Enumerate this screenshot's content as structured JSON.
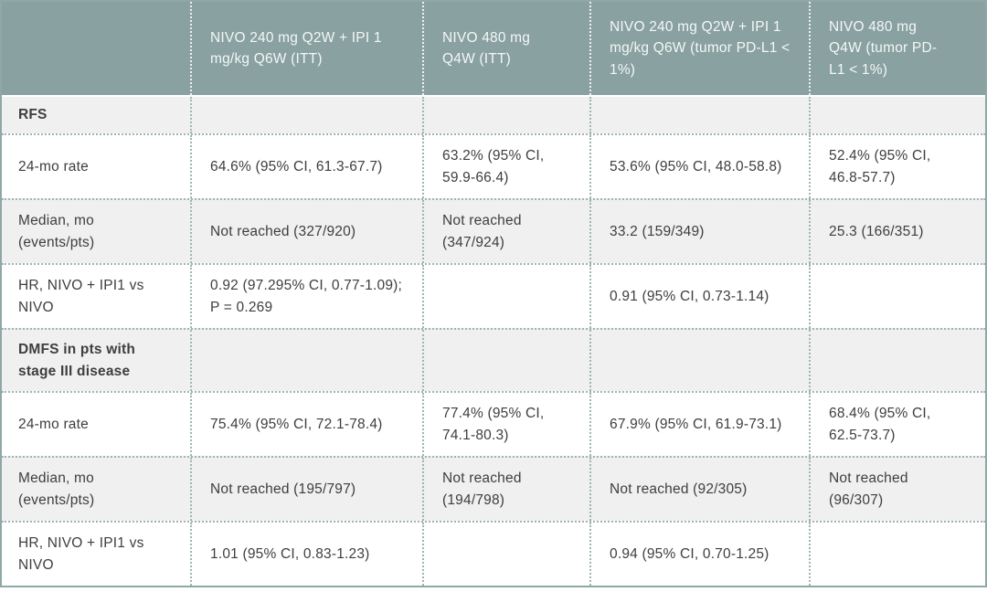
{
  "table": {
    "columns": [
      "",
      "NIVO 240 mg Q2W + IPI 1 mg/kg Q6W (ITT)",
      "NIVO 480 mg Q4W (ITT)",
      "NIVO 240 mg Q2W + IPI 1 mg/kg Q6W (tumor PD-L1 < 1%)",
      "NIVO 480 mg Q4W (tumor PD-L1 < 1%)"
    ],
    "rows": [
      {
        "type": "section",
        "label": "RFS",
        "values": [
          "",
          "",
          "",
          ""
        ]
      },
      {
        "type": "data",
        "label": "24-mo rate",
        "values": [
          "64.6% (95% CI, 61.3-67.7)",
          "63.2% (95% CI, 59.9-66.4)",
          "53.6% (95% CI, 48.0-58.8)",
          "52.4% (95% CI, 46.8-57.7)"
        ]
      },
      {
        "type": "data",
        "label": "Median, mo (events/pts)",
        "values": [
          "Not reached (327/920)",
          "Not reached (347/924)",
          "33.2 (159/349)",
          "25.3 (166/351)"
        ]
      },
      {
        "type": "data",
        "label": "HR, NIVO + IPI1 vs NIVO",
        "values": [
          "0.92 (97.295% CI, 0.77-1.09); P = 0.269",
          "",
          "0.91 (95% CI, 0.73-1.14)",
          ""
        ]
      },
      {
        "type": "section",
        "label": "DMFS in pts with stage III disease",
        "values": [
          "",
          "",
          "",
          ""
        ]
      },
      {
        "type": "data",
        "label": "24-mo rate",
        "values": [
          "75.4% (95% CI, 72.1-78.4)",
          "77.4% (95% CI, 74.1-80.3)",
          "67.9% (95% CI, 61.9-73.1)",
          "68.4% (95% CI, 62.5-73.7)"
        ]
      },
      {
        "type": "data",
        "label": "Median, mo (events/pts)",
        "values": [
          "Not reached (195/797)",
          "Not reached (194/798)",
          "Not reached (92/305)",
          "Not reached (96/307)"
        ]
      },
      {
        "type": "data",
        "label": "HR, NIVO + IPI1 vs NIVO",
        "values": [
          "1.01 (95% CI, 0.83-1.23)",
          "",
          "0.94 (95% CI, 0.70-1.25)",
          ""
        ]
      }
    ],
    "colors": {
      "header_bg": "#89A1A0",
      "header_text": "#F4F8F7",
      "section_row_bg": "#F0F0F0",
      "row_bg": "#FFFFFF",
      "outer_border": "#8FA8A6",
      "dotted_separator": "#A0B5B2",
      "body_text": "#3E3E3E"
    }
  }
}
